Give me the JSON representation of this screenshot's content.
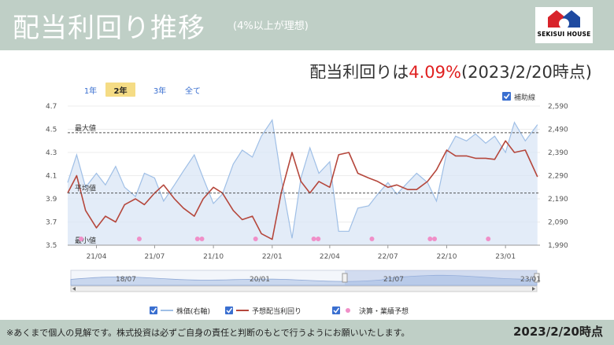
{
  "header": {
    "title": "配当利回り推移",
    "subtitle": "(4%以上が理想)"
  },
  "brand": {
    "name": "SEKISUI HOUSE",
    "color_red": "#d8232a",
    "color_blue": "#1f4aa0"
  },
  "summary": {
    "prefix": "配当利回りは",
    "value": "4.09%",
    "suffix": "(2023/2/20時点)"
  },
  "range_buttons": [
    {
      "label": "1年",
      "active": false
    },
    {
      "label": "2年",
      "active": true
    },
    {
      "label": "3年",
      "active": false
    },
    {
      "label": "全て",
      "active": false
    }
  ],
  "aux_line_label": "補助線",
  "footer": {
    "disclaimer": "※あくまで個人の見解です。株式投資は必ずご自身の責任と判断のもとで行うようにお願いいたします。",
    "date": "2023/2/20時点"
  },
  "navigator_labels": [
    "18/07",
    "20/01",
    "21/07",
    "23/01"
  ],
  "chart_data": {
    "type": "line",
    "x_ticks": [
      "21/04",
      "21/07",
      "21/10",
      "22/01",
      "22/04",
      "22/07",
      "22/10",
      "23/01"
    ],
    "y_left": {
      "range": [
        3.5,
        4.7
      ],
      "ticks": [
        3.5,
        3.7,
        3.9,
        4.1,
        4.3,
        4.5,
        4.7
      ]
    },
    "y_right": {
      "range": [
        1990,
        2590
      ],
      "ticks": [
        1990,
        2090,
        2190,
        2290,
        2390,
        2490,
        2590
      ]
    },
    "reference_lines": [
      {
        "label": "最大値",
        "value": 4.47
      },
      {
        "label": "平均値",
        "value": 3.95
      },
      {
        "label": "最小値",
        "value": 3.5
      }
    ],
    "legend": [
      "株価(右軸)",
      "予想配当利回り",
      "決算・業績予想"
    ],
    "colors": {
      "price": "#9fbfe6",
      "price_fill": "#d9e5f5",
      "yield": "#b5473c",
      "events": "#f08fc8",
      "ref": "#555555"
    },
    "dates": [
      "2021-02-15",
      "2021-03-01",
      "2021-03-15",
      "2021-04-01",
      "2021-04-15",
      "2021-05-01",
      "2021-05-15",
      "2021-06-01",
      "2021-06-15",
      "2021-07-01",
      "2021-07-15",
      "2021-08-01",
      "2021-08-15",
      "2021-09-01",
      "2021-09-15",
      "2021-10-01",
      "2021-10-15",
      "2021-11-01",
      "2021-11-15",
      "2021-12-01",
      "2021-12-15",
      "2022-01-01",
      "2022-01-15",
      "2022-02-01",
      "2022-02-15",
      "2022-03-01",
      "2022-03-15",
      "2022-04-01",
      "2022-04-15",
      "2022-05-01",
      "2022-05-15",
      "2022-06-01",
      "2022-06-15",
      "2022-07-01",
      "2022-07-15",
      "2022-08-01",
      "2022-08-15",
      "2022-09-01",
      "2022-09-15",
      "2022-10-01",
      "2022-10-15",
      "2022-11-01",
      "2022-11-15",
      "2022-12-01",
      "2022-12-15",
      "2023-01-01",
      "2023-01-15",
      "2023-02-01",
      "2023-02-20"
    ],
    "series": [
      {
        "name": "株価(右軸)",
        "axis": "right",
        "values": [
          2260,
          2380,
          2240,
          2300,
          2250,
          2330,
          2240,
          2200,
          2300,
          2280,
          2180,
          2250,
          2310,
          2380,
          2280,
          2170,
          2210,
          2340,
          2400,
          2370,
          2460,
          2530,
          2280,
          2020,
          2280,
          2410,
          2300,
          2350,
          2050,
          2050,
          2150,
          2160,
          2210,
          2260,
          2210,
          2260,
          2300,
          2260,
          2180,
          2390,
          2460,
          2440,
          2470,
          2430,
          2460,
          2390,
          2520,
          2440,
          2510
        ]
      },
      {
        "name": "予想配当利回り",
        "axis": "left",
        "values": [
          3.95,
          4.1,
          3.8,
          3.65,
          3.75,
          3.7,
          3.85,
          3.9,
          3.85,
          3.95,
          4.02,
          3.9,
          3.82,
          3.75,
          3.9,
          4.0,
          3.95,
          3.8,
          3.72,
          3.75,
          3.6,
          3.55,
          3.95,
          4.3,
          4.05,
          3.95,
          4.05,
          4.0,
          4.28,
          4.3,
          4.12,
          4.08,
          4.05,
          4.0,
          4.02,
          3.98,
          3.98,
          4.05,
          4.15,
          4.32,
          4.27,
          4.27,
          4.25,
          4.25,
          4.24,
          4.4,
          4.3,
          4.32,
          4.09
        ]
      }
    ],
    "events": [
      "2021-03-08",
      "2021-06-07",
      "2021-09-06",
      "2021-09-13",
      "2021-12-06",
      "2022-03-07",
      "2022-03-14",
      "2022-06-06",
      "2022-09-05",
      "2022-09-12",
      "2022-12-05"
    ]
  }
}
